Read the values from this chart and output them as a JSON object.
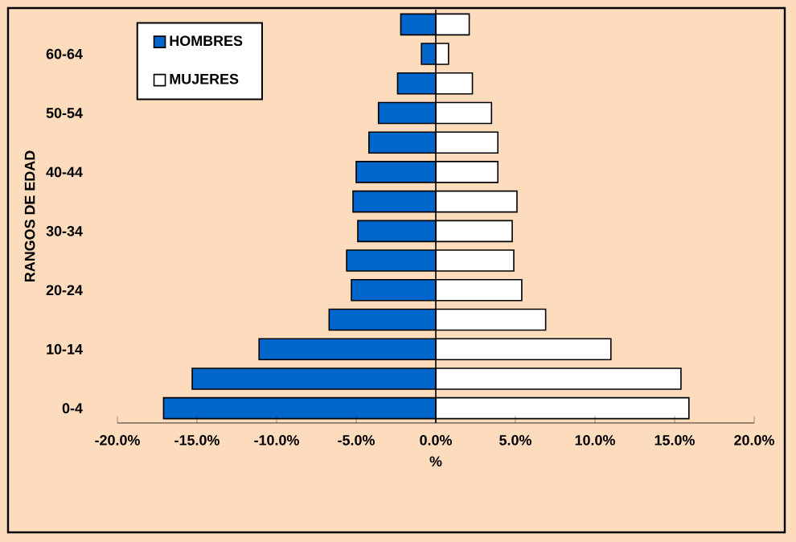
{
  "chart_data": {
    "type": "bar",
    "orientation": "horizontal",
    "xlabel": "%",
    "ylabel": "RANGOS DE EDAD",
    "stacked": true,
    "categories": [
      null,
      "60-64",
      null,
      "50-54",
      null,
      "40-44",
      null,
      "30-34",
      null,
      "20-24",
      null,
      "10-14",
      null,
      "0-4"
    ],
    "series": [
      {
        "name": "MUJERES",
        "color": "#ffffff",
        "values": [
          2.1,
          0.8,
          2.3,
          3.5,
          3.9,
          3.9,
          5.1,
          4.8,
          4.9,
          5.4,
          6.9,
          11.0,
          15.4,
          15.9
        ]
      },
      {
        "name": "HOMBRES",
        "color": "#0066cc",
        "values": [
          -2.2,
          -0.9,
          -2.4,
          -3.6,
          -4.2,
          -5.0,
          -5.2,
          -4.9,
          -5.6,
          -5.3,
          -6.7,
          -11.1,
          -15.3,
          -17.1
        ]
      }
    ],
    "xlim": [
      -20,
      20
    ],
    "xticks": [
      {
        "value": -20,
        "label": "-20.0%"
      },
      {
        "value": -15,
        "label": "-15.0%"
      },
      {
        "value": -10,
        "label": "-10.0%"
      },
      {
        "value": -5,
        "label": "-5.0%"
      },
      {
        "value": 0,
        "label": "0.0%"
      },
      {
        "value": 5,
        "label": "5.0%"
      },
      {
        "value": 10,
        "label": "10.0%"
      },
      {
        "value": 15,
        "label": "15.0%"
      },
      {
        "value": 20,
        "label": "20.0%"
      }
    ],
    "legend": "top left"
  }
}
